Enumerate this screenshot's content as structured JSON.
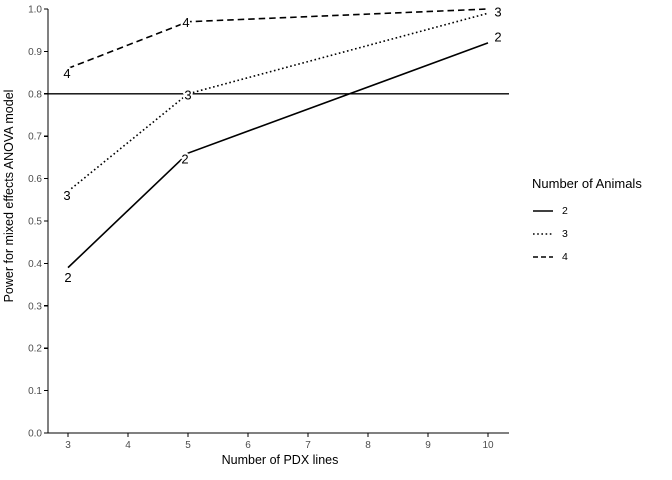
{
  "chart_data": {
    "type": "line",
    "title": "",
    "xlabel": "Number of PDX lines",
    "ylabel": "Power for mixed effects ANOVA model",
    "xlim": [
      3,
      10
    ],
    "ylim": [
      0.0,
      1.0
    ],
    "x_ticks": [
      "3",
      "4",
      "5",
      "6",
      "7",
      "8",
      "9",
      "10"
    ],
    "y_ticks": [
      "0.0",
      "0.1",
      "0.2",
      "0.3",
      "0.4",
      "0.5",
      "0.6",
      "0.7",
      "0.8",
      "0.9",
      "1.0"
    ],
    "grid": false,
    "reference_line_y": 0.8,
    "legend_position": "right",
    "series": [
      {
        "name": "2",
        "linetype": "solid",
        "x": [
          3,
          5,
          10
        ],
        "y": [
          0.39,
          0.66,
          0.92
        ],
        "point_labels": [
          {
            "text": "2",
            "x": 3,
            "y": 0.39,
            "dx": 0,
            "dy": 10
          },
          {
            "text": "2",
            "x": 5,
            "y": 0.66,
            "dx": -3,
            "dy": 6
          },
          {
            "text": "2",
            "x": 10,
            "y": 0.92,
            "dx": 10,
            "dy": -6
          }
        ]
      },
      {
        "name": "3",
        "linetype": "dotted",
        "x": [
          3,
          5,
          10
        ],
        "y": [
          0.57,
          0.8,
          0.99
        ],
        "point_labels": [
          {
            "text": "3",
            "x": 3,
            "y": 0.57,
            "dx": -1,
            "dy": 4
          },
          {
            "text": "3",
            "x": 5,
            "y": 0.8,
            "dx": 0,
            "dy": 1
          },
          {
            "text": "3",
            "x": 10,
            "y": 0.99,
            "dx": 10,
            "dy": -1
          }
        ]
      },
      {
        "name": "4",
        "linetype": "dashed",
        "x": [
          3,
          5,
          10
        ],
        "y": [
          0.86,
          0.97,
          1.0
        ],
        "point_labels": [
          {
            "text": "4",
            "x": 3,
            "y": 0.86,
            "dx": -1,
            "dy": 5
          },
          {
            "text": "4",
            "x": 5,
            "y": 0.97,
            "dx": -2,
            "dy": 1
          }
        ]
      }
    ],
    "legend": {
      "title": "Number of Animals",
      "entries": [
        {
          "label": "2",
          "linetype": "solid"
        },
        {
          "label": "3",
          "linetype": "dotted"
        },
        {
          "label": "4",
          "linetype": "dashed"
        }
      ]
    }
  },
  "colors": {
    "line": "#000000",
    "axis": "#000000",
    "tick_text": "#4d4d4d",
    "background": "#ffffff",
    "label_halo": "#ffffff"
  }
}
